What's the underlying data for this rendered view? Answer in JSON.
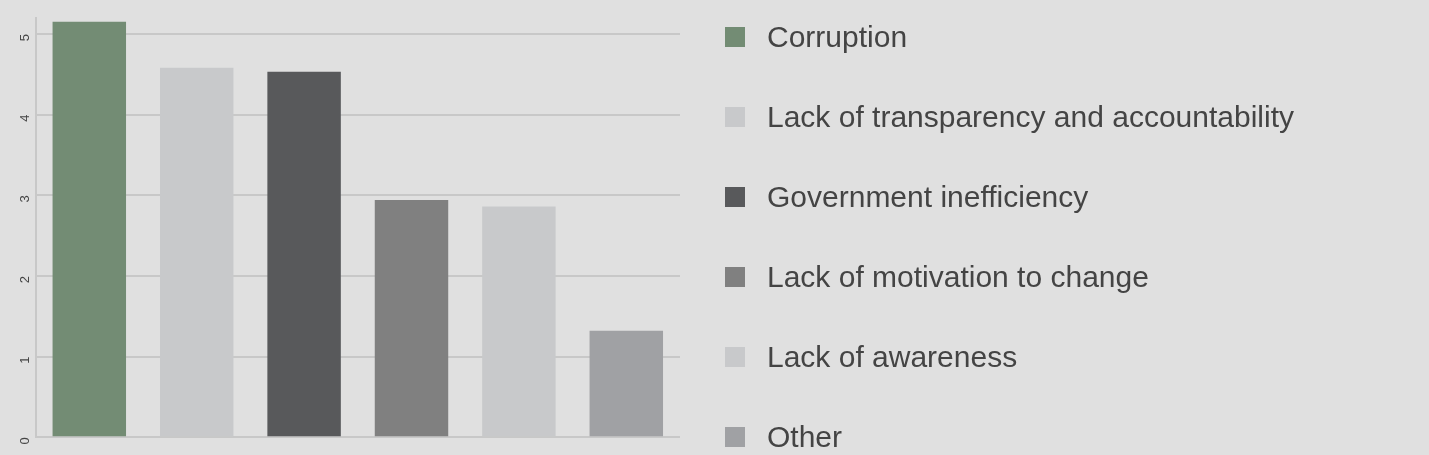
{
  "chart_data": {
    "type": "bar",
    "categories": [
      null,
      null,
      null,
      null,
      null,
      null
    ],
    "series": [
      {
        "name": "Corruption",
        "color": "#738c74",
        "values": [
          5.15,
          null,
          null,
          null,
          null,
          null
        ]
      },
      {
        "name": "Lack of transparency and accountability",
        "color": "#c8c9cb",
        "values": [
          null,
          4.58,
          null,
          null,
          null,
          null
        ]
      },
      {
        "name": "Government inefficiency",
        "color": "#58595b",
        "values": [
          null,
          null,
          4.53,
          null,
          null,
          null
        ]
      },
      {
        "name": "Lack of motivation to change",
        "color": "#808080",
        "values": [
          null,
          null,
          null,
          2.94,
          null,
          null
        ]
      },
      {
        "name": "Lack of awareness",
        "color": "#c8c9cb",
        "values": [
          null,
          null,
          null,
          null,
          2.86,
          null
        ]
      },
      {
        "name": "Other",
        "color": "#a0a1a4",
        "values": [
          null,
          null,
          null,
          null,
          null,
          1.32
        ]
      }
    ],
    "ylim": [
      0,
      5.2
    ],
    "yticks": [
      0,
      1,
      2,
      3,
      4,
      5
    ],
    "grid": "y",
    "legend": "right",
    "tick_labels": "y"
  }
}
